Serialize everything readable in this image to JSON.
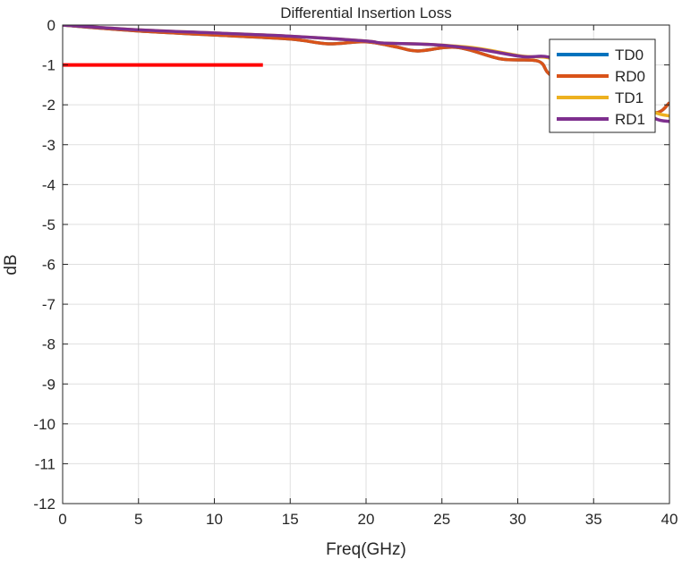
{
  "chart_data": {
    "type": "line",
    "title": "Differential Insertion Loss",
    "xlabel": "Freq(GHz)",
    "ylabel": "dB",
    "xlim": [
      0,
      40
    ],
    "ylim": [
      -12,
      0
    ],
    "xticks": [
      0,
      5,
      10,
      15,
      20,
      25,
      30,
      35,
      40
    ],
    "yticks": [
      0,
      -1,
      -2,
      -3,
      -4,
      -5,
      -6,
      -7,
      -8,
      -9,
      -10,
      -11,
      -12
    ],
    "grid": true,
    "legend_position": "top-right",
    "series": [
      {
        "name": "TD0",
        "color": "#0072BD",
        "x": [
          0,
          5,
          10,
          15,
          17.5,
          20,
          22,
          23.4,
          26,
          28.9,
          31.3,
          32,
          33,
          35,
          37,
          39.1,
          40
        ],
        "y": [
          0,
          -0.15,
          -0.25,
          -0.35,
          -0.47,
          -0.42,
          -0.55,
          -0.65,
          -0.56,
          -0.85,
          -0.9,
          -1.2,
          -1.5,
          -1.8,
          -2.05,
          -2.2,
          -1.95
        ]
      },
      {
        "name": "RD0",
        "color": "#D95319",
        "x": [
          0,
          5,
          10,
          15,
          17.5,
          20,
          22,
          23.4,
          26,
          28.9,
          31.3,
          32,
          33,
          35,
          37,
          39.1,
          40
        ],
        "y": [
          0,
          -0.15,
          -0.25,
          -0.35,
          -0.47,
          -0.42,
          -0.55,
          -0.65,
          -0.56,
          -0.85,
          -0.9,
          -1.2,
          -1.5,
          -1.8,
          -2.05,
          -2.2,
          -1.95
        ]
      },
      {
        "name": "TD1",
        "color": "#EDB120",
        "x": [
          0,
          5,
          10,
          15,
          20,
          21.1,
          24.4,
          27.3,
          30.3,
          32,
          34,
          36,
          38,
          39.1,
          40
        ],
        "y": [
          0,
          -0.12,
          -0.2,
          -0.28,
          -0.4,
          -0.45,
          -0.49,
          -0.58,
          -0.78,
          -0.82,
          -1.1,
          -1.5,
          -1.95,
          -2.2,
          -2.28
        ]
      },
      {
        "name": "RD1",
        "color": "#7E2F8E",
        "x": [
          0,
          5,
          10,
          15,
          20,
          21.1,
          24.4,
          27.3,
          30.3,
          32,
          34,
          36,
          38,
          39.1,
          40
        ],
        "y": [
          0,
          -0.12,
          -0.2,
          -0.28,
          -0.4,
          -0.45,
          -0.49,
          -0.6,
          -0.79,
          -0.8,
          -1.1,
          -1.55,
          -2.05,
          -2.35,
          -2.42
        ]
      }
    ],
    "annotations": [
      {
        "type": "limit-line",
        "color": "#FF0000",
        "x": [
          0,
          13.2
        ],
        "y": [
          -1,
          -1
        ]
      }
    ]
  }
}
